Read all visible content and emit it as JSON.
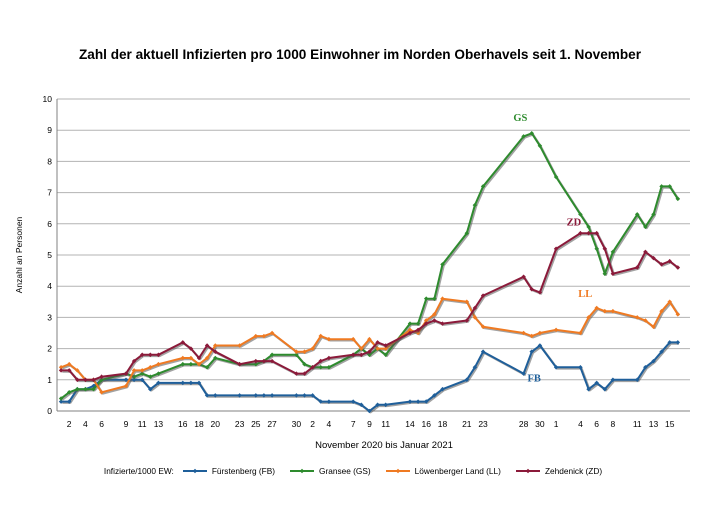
{
  "chart_data": {
    "type": "line",
    "title": "Zahl der aktuell Infizierten pro 1000 Einwohner im Norden Oberhavels seit 1. November",
    "xlabel": "November 2020 bis Januar 2021",
    "ylabel": "Anzahl an Personen",
    "ylim": [
      0,
      10
    ],
    "yticks": [
      "0",
      "1",
      "2",
      "3",
      "4",
      "5",
      "6",
      "7",
      "8",
      "9",
      "10"
    ],
    "x_tick_labels": [
      {
        "day": 2,
        "label": "2"
      },
      {
        "day": 4,
        "label": "4"
      },
      {
        "day": 6,
        "label": "6"
      },
      {
        "day": 9,
        "label": "9"
      },
      {
        "day": 11,
        "label": "11"
      },
      {
        "day": 13,
        "label": "13"
      },
      {
        "day": 16,
        "label": "16"
      },
      {
        "day": 18,
        "label": "18"
      },
      {
        "day": 20,
        "label": "20"
      },
      {
        "day": 23,
        "label": "23"
      },
      {
        "day": 25,
        "label": "25"
      },
      {
        "day": 27,
        "label": "27"
      },
      {
        "day": 30,
        "label": "30"
      },
      {
        "day": 32,
        "label": "2"
      },
      {
        "day": 34,
        "label": "4"
      },
      {
        "day": 37,
        "label": "7"
      },
      {
        "day": 39,
        "label": "9"
      },
      {
        "day": 41,
        "label": "11"
      },
      {
        "day": 44,
        "label": "14"
      },
      {
        "day": 46,
        "label": "16"
      },
      {
        "day": 48,
        "label": "18"
      },
      {
        "day": 51,
        "label": "21"
      },
      {
        "day": 53,
        "label": "23"
      },
      {
        "day": 58,
        "label": "28"
      },
      {
        "day": 60,
        "label": "30"
      },
      {
        "day": 62,
        "label": "1"
      },
      {
        "day": 65,
        "label": "4"
      },
      {
        "day": 67,
        "label": "6"
      },
      {
        "day": 69,
        "label": "8"
      },
      {
        "day": 72,
        "label": "11"
      },
      {
        "day": 74,
        "label": "13"
      },
      {
        "day": 76,
        "label": "15"
      }
    ],
    "legend_title": "Infizierte/1000 EW:",
    "series": [
      {
        "name": "Fürstenberg (FB)",
        "short": "FB",
        "color": "#1f5f9a",
        "points": [
          [
            1,
            0.3
          ],
          [
            2,
            0.3
          ],
          [
            3,
            0.7
          ],
          [
            4,
            0.7
          ],
          [
            5,
            0.8
          ],
          [
            6,
            1.0
          ],
          [
            9,
            1.0
          ],
          [
            10,
            1.0
          ],
          [
            11,
            1.0
          ],
          [
            12,
            0.7
          ],
          [
            13,
            0.9
          ],
          [
            16,
            0.9
          ],
          [
            17,
            0.9
          ],
          [
            18,
            0.9
          ],
          [
            19,
            0.5
          ],
          [
            20,
            0.5
          ],
          [
            23,
            0.5
          ],
          [
            25,
            0.5
          ],
          [
            26,
            0.5
          ],
          [
            27,
            0.5
          ],
          [
            30,
            0.5
          ],
          [
            31,
            0.5
          ],
          [
            32,
            0.5
          ],
          [
            33,
            0.3
          ],
          [
            34,
            0.3
          ],
          [
            37,
            0.3
          ],
          [
            38,
            0.2
          ],
          [
            39,
            0.0
          ],
          [
            40,
            0.2
          ],
          [
            41,
            0.2
          ],
          [
            44,
            0.3
          ],
          [
            45,
            0.3
          ],
          [
            46,
            0.3
          ],
          [
            47,
            0.5
          ],
          [
            48,
            0.7
          ],
          [
            51,
            1.0
          ],
          [
            52,
            1.4
          ],
          [
            53,
            1.9
          ],
          [
            58,
            1.2
          ],
          [
            59,
            1.9
          ],
          [
            60,
            2.1
          ],
          [
            62,
            1.4
          ],
          [
            65,
            1.4
          ],
          [
            66,
            0.7
          ],
          [
            67,
            0.9
          ],
          [
            68,
            0.7
          ],
          [
            69,
            1.0
          ],
          [
            72,
            1.0
          ],
          [
            73,
            1.4
          ],
          [
            74,
            1.6
          ],
          [
            75,
            1.9
          ],
          [
            76,
            2.2
          ],
          [
            77,
            2.2
          ]
        ]
      },
      {
        "name": "Gransee (GS)",
        "short": "GS",
        "color": "#2e8b2e",
        "points": [
          [
            1,
            0.4
          ],
          [
            2,
            0.6
          ],
          [
            3,
            0.7
          ],
          [
            4,
            0.7
          ],
          [
            5,
            0.7
          ],
          [
            6,
            1.0
          ],
          [
            9,
            1.2
          ],
          [
            10,
            1.1
          ],
          [
            11,
            1.2
          ],
          [
            12,
            1.1
          ],
          [
            13,
            1.2
          ],
          [
            16,
            1.5
          ],
          [
            17,
            1.5
          ],
          [
            18,
            1.5
          ],
          [
            19,
            1.4
          ],
          [
            20,
            1.7
          ],
          [
            23,
            1.5
          ],
          [
            25,
            1.5
          ],
          [
            26,
            1.6
          ],
          [
            27,
            1.8
          ],
          [
            30,
            1.8
          ],
          [
            31,
            1.5
          ],
          [
            32,
            1.4
          ],
          [
            33,
            1.4
          ],
          [
            34,
            1.4
          ],
          [
            37,
            1.8
          ],
          [
            38,
            2.0
          ],
          [
            39,
            1.8
          ],
          [
            40,
            2.0
          ],
          [
            41,
            1.8
          ],
          [
            44,
            2.8
          ],
          [
            45,
            2.8
          ],
          [
            46,
            3.6
          ],
          [
            47,
            3.6
          ],
          [
            48,
            4.7
          ],
          [
            51,
            5.7
          ],
          [
            52,
            6.6
          ],
          [
            53,
            7.2
          ],
          [
            58,
            8.8
          ],
          [
            59,
            8.9
          ],
          [
            60,
            8.5
          ],
          [
            62,
            7.5
          ],
          [
            65,
            6.3
          ],
          [
            66,
            5.9
          ],
          [
            67,
            5.2
          ],
          [
            68,
            4.4
          ],
          [
            69,
            5.1
          ],
          [
            72,
            6.3
          ],
          [
            73,
            5.9
          ],
          [
            74,
            6.3
          ],
          [
            75,
            7.2
          ],
          [
            76,
            7.2
          ],
          [
            77,
            6.8
          ]
        ]
      },
      {
        "name": "Löwenberger Land (LL)",
        "short": "LL",
        "color": "#ef7a22",
        "points": [
          [
            1,
            1.4
          ],
          [
            2,
            1.5
          ],
          [
            3,
            1.3
          ],
          [
            4,
            1.0
          ],
          [
            5,
            1.0
          ],
          [
            6,
            0.6
          ],
          [
            9,
            0.8
          ],
          [
            10,
            1.3
          ],
          [
            11,
            1.3
          ],
          [
            12,
            1.4
          ],
          [
            13,
            1.5
          ],
          [
            16,
            1.7
          ],
          [
            17,
            1.7
          ],
          [
            18,
            1.5
          ],
          [
            19,
            1.7
          ],
          [
            20,
            2.1
          ],
          [
            23,
            2.1
          ],
          [
            25,
            2.4
          ],
          [
            26,
            2.4
          ],
          [
            27,
            2.5
          ],
          [
            30,
            1.9
          ],
          [
            31,
            1.9
          ],
          [
            32,
            2.0
          ],
          [
            33,
            2.4
          ],
          [
            34,
            2.3
          ],
          [
            37,
            2.3
          ],
          [
            38,
            2.0
          ],
          [
            39,
            2.3
          ],
          [
            40,
            2.0
          ],
          [
            41,
            2.0
          ],
          [
            44,
            2.6
          ],
          [
            45,
            2.5
          ],
          [
            46,
            2.9
          ],
          [
            47,
            3.1
          ],
          [
            48,
            3.6
          ],
          [
            51,
            3.5
          ],
          [
            52,
            3.0
          ],
          [
            53,
            2.7
          ],
          [
            58,
            2.5
          ],
          [
            59,
            2.4
          ],
          [
            60,
            2.5
          ],
          [
            62,
            2.6
          ],
          [
            65,
            2.5
          ],
          [
            66,
            3.0
          ],
          [
            67,
            3.3
          ],
          [
            68,
            3.2
          ],
          [
            69,
            3.2
          ],
          [
            72,
            3.0
          ],
          [
            73,
            2.9
          ],
          [
            74,
            2.7
          ],
          [
            75,
            3.2
          ],
          [
            76,
            3.5
          ],
          [
            77,
            3.1
          ]
        ]
      },
      {
        "name": "Zehdenick (ZD)",
        "short": "ZD",
        "color": "#8b1a3a",
        "points": [
          [
            1,
            1.3
          ],
          [
            2,
            1.3
          ],
          [
            3,
            1.0
          ],
          [
            4,
            1.0
          ],
          [
            5,
            1.0
          ],
          [
            6,
            1.1
          ],
          [
            9,
            1.2
          ],
          [
            10,
            1.6
          ],
          [
            11,
            1.8
          ],
          [
            12,
            1.8
          ],
          [
            13,
            1.8
          ],
          [
            16,
            2.2
          ],
          [
            17,
            2.0
          ],
          [
            18,
            1.7
          ],
          [
            19,
            2.1
          ],
          [
            20,
            1.9
          ],
          [
            23,
            1.5
          ],
          [
            25,
            1.6
          ],
          [
            26,
            1.6
          ],
          [
            27,
            1.6
          ],
          [
            30,
            1.2
          ],
          [
            31,
            1.2
          ],
          [
            32,
            1.4
          ],
          [
            33,
            1.6
          ],
          [
            34,
            1.7
          ],
          [
            37,
            1.8
          ],
          [
            38,
            1.8
          ],
          [
            39,
            1.9
          ],
          [
            40,
            2.2
          ],
          [
            41,
            2.1
          ],
          [
            44,
            2.5
          ],
          [
            45,
            2.6
          ],
          [
            46,
            2.8
          ],
          [
            47,
            2.9
          ],
          [
            48,
            2.8
          ],
          [
            51,
            2.9
          ],
          [
            52,
            3.3
          ],
          [
            53,
            3.7
          ],
          [
            58,
            4.3
          ],
          [
            59,
            3.9
          ],
          [
            60,
            3.8
          ],
          [
            62,
            5.2
          ],
          [
            65,
            5.7
          ],
          [
            66,
            5.7
          ],
          [
            67,
            5.7
          ],
          [
            68,
            5.2
          ],
          [
            69,
            4.4
          ],
          [
            72,
            4.6
          ],
          [
            73,
            5.1
          ],
          [
            74,
            4.9
          ],
          [
            75,
            4.7
          ],
          [
            76,
            4.8
          ],
          [
            77,
            4.6
          ]
        ]
      }
    ],
    "annotations": [
      {
        "text": "GS",
        "series": "GS",
        "day": 57.6,
        "value": 9.3
      },
      {
        "text": "ZD",
        "series": "ZD",
        "day": 64.2,
        "value": 5.95
      },
      {
        "text": "LL",
        "series": "LL",
        "day": 65.6,
        "value": 3.65
      },
      {
        "text": "FB",
        "series": "FB",
        "day": 59.3,
        "value": 0.95
      }
    ]
  }
}
